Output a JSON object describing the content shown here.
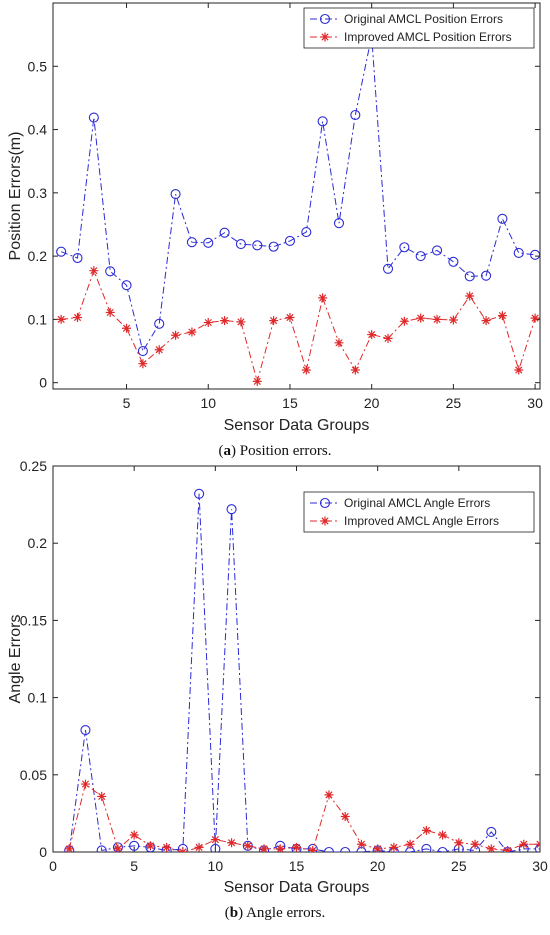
{
  "captions": {
    "a_letter": "a",
    "a_text": " Position errors.",
    "b_letter": "b",
    "b_text": " Angle errors."
  },
  "colors": {
    "original": "#2b2bd6",
    "improved": "#e0292b",
    "axis": "#222222"
  },
  "chart_data": [
    {
      "type": "line",
      "xlabel": "Sensor Data Groups",
      "ylabel": "Position Errors(m)",
      "xlim": [
        0.5,
        30.3
      ],
      "ylim": [
        -0.01,
        0.6
      ],
      "xticks": [
        5,
        10,
        15,
        20,
        25,
        30
      ],
      "yticks": [
        0,
        0.1,
        0.2,
        0.3,
        0.4,
        0.5
      ],
      "ytick_labels": [
        "0",
        "0.1",
        "0.2",
        "0.3",
        "0.4",
        "0.5"
      ],
      "grid": false,
      "legend": "top-right",
      "x": [
        1,
        2,
        3,
        4,
        5,
        6,
        7,
        8,
        9,
        10,
        11,
        12,
        13,
        14,
        15,
        16,
        17,
        18,
        19,
        20,
        21,
        22,
        23,
        24,
        25,
        26,
        27,
        28,
        29,
        30
      ],
      "series": [
        {
          "name": "Original AMCL Position Errors",
          "marker": "circle",
          "color": "#2b2bd6",
          "values": [
            0.207,
            0.197,
            0.419,
            0.176,
            0.154,
            0.05,
            0.093,
            0.298,
            0.222,
            0.221,
            0.237,
            0.219,
            0.217,
            0.215,
            0.224,
            0.238,
            0.413,
            0.252,
            0.423,
            0.548,
            0.18,
            0.214,
            0.2,
            0.209,
            0.191,
            0.168,
            0.169,
            0.259,
            0.205,
            0.202
          ]
        },
        {
          "name": "Improved AMCL Position Errors",
          "marker": "star",
          "color": "#e0292b",
          "values": [
            0.1,
            0.103,
            0.177,
            0.111,
            0.086,
            0.03,
            0.052,
            0.075,
            0.08,
            0.095,
            0.098,
            0.096,
            0.002,
            0.098,
            0.103,
            0.02,
            0.134,
            0.063,
            0.02,
            0.076,
            0.07,
            0.097,
            0.102,
            0.1,
            0.099,
            0.137,
            0.098,
            0.106,
            0.02,
            0.102
          ]
        }
      ]
    },
    {
      "type": "line",
      "xlabel": "Sensor Data Groups",
      "ylabel": "Angle Errors",
      "xlim": [
        0,
        30
      ],
      "ylim": [
        0,
        0.25
      ],
      "xticks": [
        0,
        5,
        10,
        15,
        20,
        25,
        30
      ],
      "yticks": [
        0,
        0.05,
        0.1,
        0.15,
        0.2,
        0.25
      ],
      "ytick_labels": [
        "0",
        "0.05",
        "0.1",
        "0.15",
        "0.2",
        "0.25"
      ],
      "grid": false,
      "legend": "top-right",
      "x": [
        1,
        2,
        3,
        4,
        5,
        6,
        7,
        8,
        9,
        10,
        11,
        12,
        13,
        14,
        15,
        16,
        17,
        18,
        19,
        20,
        21,
        22,
        23,
        24,
        25,
        26,
        27,
        28,
        29,
        30
      ],
      "series": [
        {
          "name": "Original AMCL Angle Errors",
          "marker": "circle",
          "color": "#2b2bd6",
          "values": [
            0.001,
            0.079,
            0.001,
            0.003,
            0.004,
            0.003,
            0.001,
            0.002,
            0.232,
            0.002,
            0.222,
            0.004,
            0.001,
            0.004,
            0.002,
            0.002,
            0.0,
            0.0,
            0.0,
            0.001,
            0.0,
            0.0,
            0.002,
            0.0,
            0.002,
            0.001,
            0.013,
            0.0,
            0.002,
            0.002
          ]
        },
        {
          "name": "Improved AMCL Angle Errors",
          "marker": "star",
          "color": "#e0292b",
          "values": [
            0.002,
            0.044,
            0.036,
            0.002,
            0.011,
            0.004,
            0.003,
            0.0,
            0.003,
            0.008,
            0.006,
            0.004,
            0.002,
            0.002,
            0.003,
            0.001,
            0.037,
            0.023,
            0.005,
            0.002,
            0.003,
            0.005,
            0.014,
            0.011,
            0.006,
            0.005,
            0.002,
            0.001,
            0.005,
            0.005
          ]
        }
      ]
    }
  ]
}
